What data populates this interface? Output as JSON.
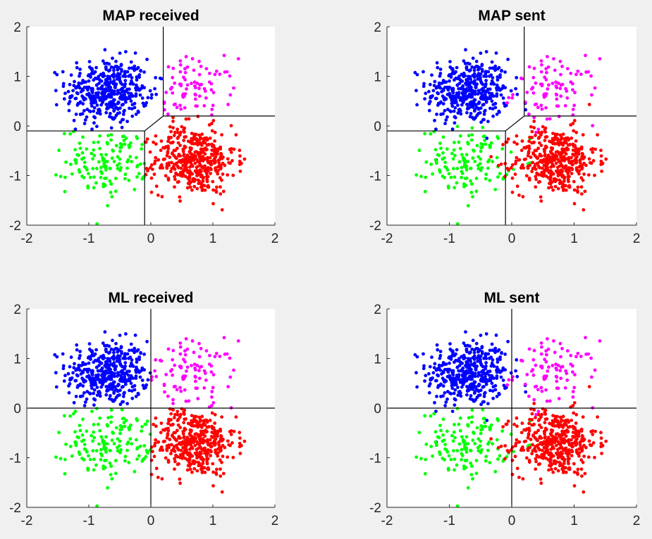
{
  "colors": {
    "figure_background": "#f0f0f0",
    "axes_background": "#ffffff",
    "axis_color": "#262626",
    "boundary_color": "#000000",
    "class_colors": [
      "#0000ff",
      "#ff00ff",
      "#00ff00",
      "#ff0000"
    ]
  },
  "chart_data": [
    {
      "type": "scatter",
      "title": "MAP received",
      "xlim": [
        -2,
        2
      ],
      "ylim": [
        -2,
        2
      ],
      "xticks": [
        "-2",
        "-1",
        "0",
        "1",
        "2"
      ],
      "yticks": [
        "-2",
        "-1",
        "0",
        "1",
        "2"
      ],
      "grid": false,
      "color_rule": "decision",
      "boundary": {
        "upper_vertical": [
          [
            0.2,
            2
          ],
          [
            0.2,
            0.2
          ]
        ],
        "right_horizontal": [
          [
            0.2,
            0.2
          ],
          [
            2,
            0.2
          ]
        ],
        "left_horizontal": [
          [
            -2,
            -0.1
          ],
          [
            -0.1,
            -0.1
          ]
        ],
        "lower_vertical": [
          [
            -0.1,
            -0.1
          ],
          [
            -0.1,
            -2
          ]
        ],
        "diagonal": [
          [
            -0.1,
            -0.1
          ],
          [
            0.2,
            0.2
          ]
        ]
      }
    },
    {
      "type": "scatter",
      "title": "MAP sent",
      "xlim": [
        -2,
        2
      ],
      "ylim": [
        -2,
        2
      ],
      "xticks": [
        "-2",
        "-1",
        "0",
        "1",
        "2"
      ],
      "yticks": [
        "-2",
        "-1",
        "0",
        "1",
        "2"
      ],
      "grid": false,
      "color_rule": "sent",
      "boundary": {
        "upper_vertical": [
          [
            0.2,
            2
          ],
          [
            0.2,
            0.2
          ]
        ],
        "right_horizontal": [
          [
            0.2,
            0.2
          ],
          [
            2,
            0.2
          ]
        ],
        "left_horizontal": [
          [
            -2,
            -0.1
          ],
          [
            -0.1,
            -0.1
          ]
        ],
        "lower_vertical": [
          [
            -0.1,
            -0.1
          ],
          [
            -0.1,
            -2
          ]
        ],
        "diagonal": [
          [
            -0.1,
            -0.1
          ],
          [
            0.2,
            0.2
          ]
        ]
      }
    },
    {
      "type": "scatter",
      "title": "ML received",
      "xlim": [
        -2,
        2
      ],
      "ylim": [
        -2,
        2
      ],
      "xticks": [
        "-2",
        "-1",
        "0",
        "1",
        "2"
      ],
      "yticks": [
        "-2",
        "-1",
        "0",
        "1",
        "2"
      ],
      "grid": false,
      "color_rule": "decision",
      "boundary": {
        "vertical": [
          [
            0,
            2
          ],
          [
            0,
            -2
          ]
        ],
        "horizontal": [
          [
            -2,
            0
          ],
          [
            2,
            0
          ]
        ]
      }
    },
    {
      "type": "scatter",
      "title": "ML sent",
      "xlim": [
        -2,
        2
      ],
      "ylim": [
        -2,
        2
      ],
      "xticks": [
        "-2",
        "-1",
        "0",
        "1",
        "2"
      ],
      "yticks": [
        "-2",
        "-1",
        "0",
        "1",
        "2"
      ],
      "grid": false,
      "color_rule": "sent",
      "boundary": {
        "vertical": [
          [
            0,
            2
          ],
          [
            0,
            -2
          ]
        ],
        "horizontal": [
          [
            -2,
            0
          ],
          [
            2,
            0
          ]
        ]
      }
    }
  ],
  "points": {
    "description_of_classes": [
      "blue",
      "magenta",
      "green",
      "red"
    ],
    "class_centers": [
      [
        -0.7,
        0.7
      ],
      [
        0.7,
        0.7
      ],
      [
        -0.7,
        -0.7
      ],
      [
        0.7,
        -0.7
      ]
    ],
    "class_counts": [
      420,
      90,
      140,
      430
    ],
    "spread": 0.33
  }
}
